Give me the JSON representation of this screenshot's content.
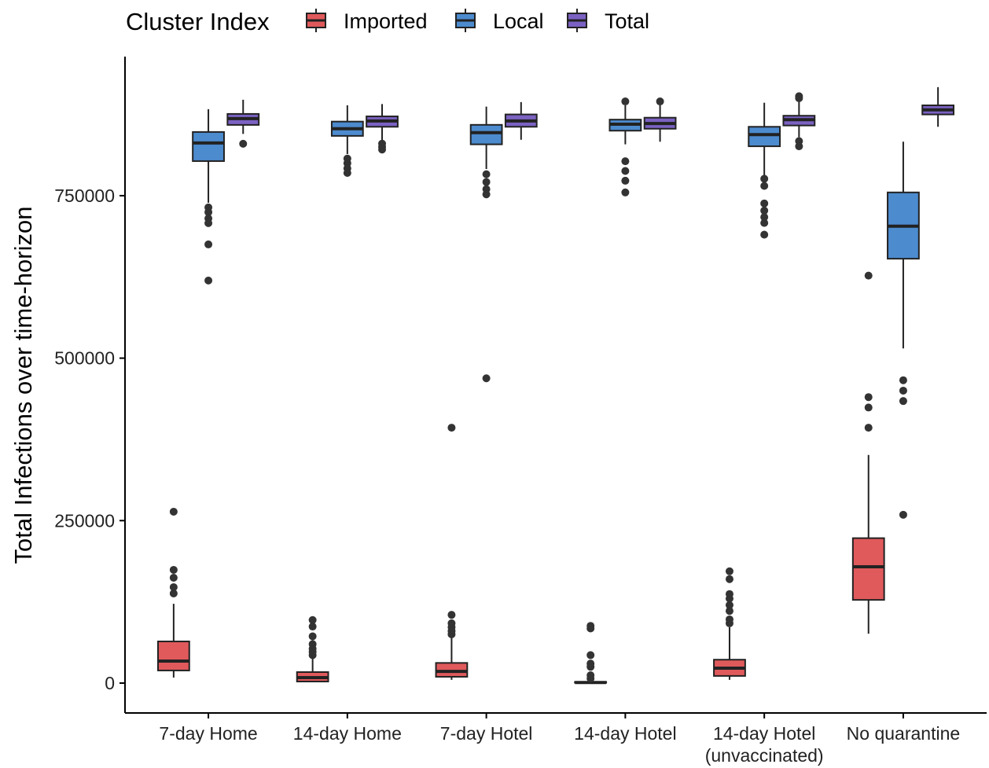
{
  "chart_data": {
    "type": "box",
    "legend_title": "Cluster Index",
    "y_label": "Total Infections over time-horizon",
    "categories": [
      "7-day Home",
      "14-day Home",
      "7-day Hotel",
      "14-day Hotel",
      "14-day Hotel\n(unvaccinated)",
      "No quarantine"
    ],
    "ylim": [
      -46000,
      964000
    ],
    "yticks": [
      0,
      250000,
      500000,
      750000
    ],
    "legend": "top",
    "series": [
      {
        "name": "Imported",
        "color": "#E05A5C",
        "values": [
          {
            "low": 8500,
            "q1": 19400,
            "median": 33900,
            "q3": 64100,
            "high": 122000,
            "outliers": [
              137900,
              147600,
              162100,
              174200,
              263700
            ]
          },
          {
            "low": 1200,
            "q1": 2400,
            "median": 8500,
            "q3": 16900,
            "high": 41000,
            "outliers": [
              43000,
              48000,
              53000,
              60000,
              72000,
              87000,
              97000
            ]
          },
          {
            "low": 5000,
            "q1": 9700,
            "median": 18000,
            "q3": 31000,
            "high": 71000,
            "outliers": [
              75000,
              80000,
              86000,
              92000,
              105000,
              393000
            ]
          },
          {
            "low": 0,
            "q1": 600,
            "median": 900,
            "q3": 1800,
            "high": 3000,
            "outliers": [
              7000,
              12000,
              25000,
              30000,
              43000,
              84000,
              88000
            ]
          },
          {
            "low": 5000,
            "q1": 11000,
            "median": 23000,
            "q3": 36000,
            "high": 86000,
            "outliers": [
              92000,
              98000,
              111000,
              120000,
              130000,
              137000,
              160000,
              172000
            ]
          },
          {
            "low": 76000,
            "q1": 128000,
            "median": 179000,
            "q3": 223000,
            "high": 351000,
            "outliers": [
              393000,
              424000,
              440000,
              627000
            ]
          }
        ]
      },
      {
        "name": "Local",
        "color": "#4C8BCE",
        "values": [
          {
            "low": 739100,
            "q1": 803200,
            "median": 831100,
            "q3": 848000,
            "high": 883100,
            "outliers": [
              731900,
              724600,
              715000,
              707700,
              675000,
              619400
            ]
          },
          {
            "low": 814000,
            "q1": 842000,
            "median": 853000,
            "q3": 864000,
            "high": 889000,
            "outliers": [
              807000,
              800000,
              792000,
              785000
            ]
          },
          {
            "low": 791000,
            "q1": 829000,
            "median": 847000,
            "q3": 859000,
            "high": 887000,
            "outliers": [
              783000,
              771000,
              760000,
              752000,
              469000
            ]
          },
          {
            "low": 829000,
            "q1": 850000,
            "median": 860000,
            "q3": 867000,
            "high": 889000,
            "outliers": [
              895000,
              803000,
              788000,
              773000,
              755000
            ]
          },
          {
            "low": 781000,
            "q1": 826000,
            "median": 844000,
            "q3": 856000,
            "high": 893000,
            "outliers": [
              776000,
              765000,
              738000,
              727000,
              717000,
              708000,
              690000
            ]
          },
          {
            "low": 515000,
            "q1": 653000,
            "median": 703000,
            "q3": 755000,
            "high": 833000,
            "outliers": [
              466000,
              450000,
              434000,
              259000
            ]
          }
        ]
      },
      {
        "name": "Total",
        "color": "#7B62C2",
        "values": [
          {
            "low": 845000,
            "q1": 858900,
            "median": 868600,
            "q3": 875800,
            "high": 897600,
            "outliers": [
              829900
            ]
          },
          {
            "low": 833000,
            "q1": 856000,
            "median": 865000,
            "q3": 872000,
            "high": 891000,
            "outliers": [
              830000,
              825000,
              821000
            ]
          },
          {
            "low": 836000,
            "q1": 856000,
            "median": 865000,
            "q3": 875000,
            "high": 894000,
            "outliers": []
          },
          {
            "low": 833000,
            "q1": 853000,
            "median": 861000,
            "q3": 870000,
            "high": 890000,
            "outliers": [
              895000
            ]
          },
          {
            "low": 840000,
            "q1": 858000,
            "median": 867000,
            "q3": 873000,
            "high": 896000,
            "outliers": [
              903000,
              900000,
              834000,
              826000
            ]
          },
          {
            "low": 856000,
            "q1": 875000,
            "median": 882000,
            "q3": 889000,
            "high": 917000,
            "outliers": []
          }
        ]
      }
    ]
  }
}
